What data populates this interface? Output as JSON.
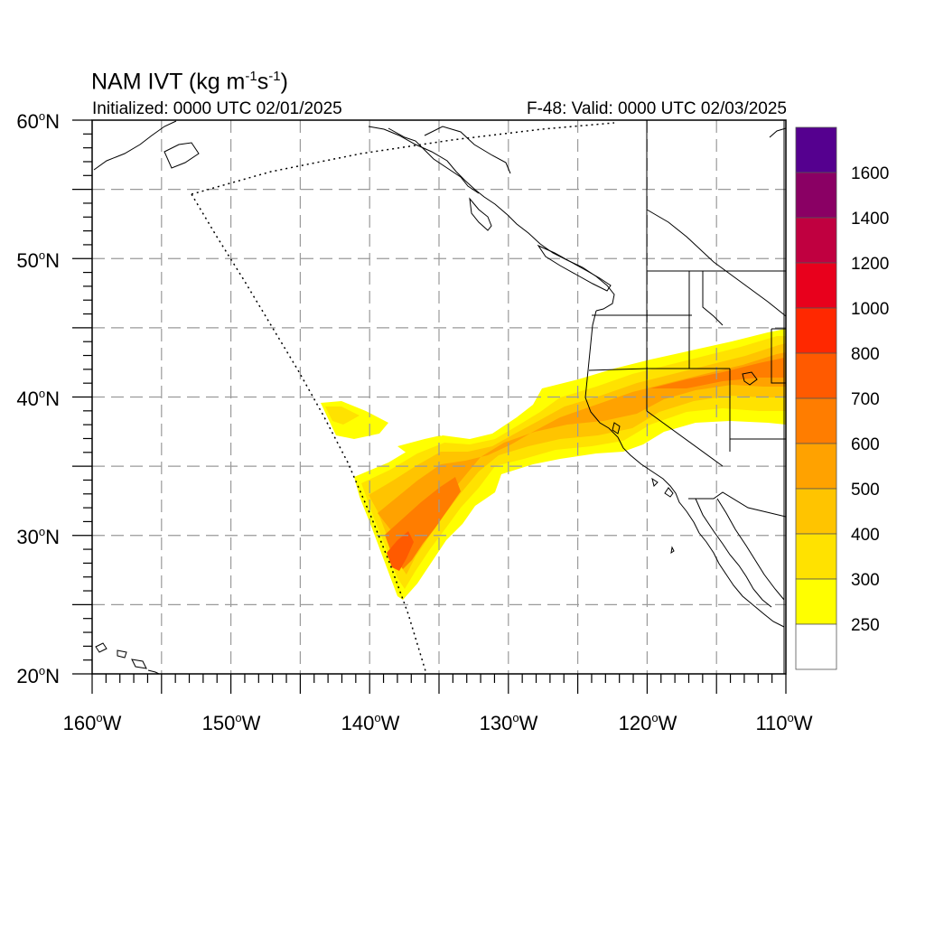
{
  "figure": {
    "title_main": "NAM IVT (kg m",
    "title_sup1": "-1",
    "title_mid": "s",
    "title_sup2": "-1",
    "title_end": ")",
    "initialized": "Initialized: 0000 UTC 02/01/2025",
    "valid": "F-48: Valid: 0000 UTC 02/03/2025"
  },
  "map": {
    "lon_range": [
      -160,
      -110
    ],
    "lat_range": [
      20,
      60
    ],
    "gridline_style": "dashed gray",
    "x_ticks": [
      {
        "num": "160",
        "hemi": "W"
      },
      {
        "num": "150",
        "hemi": "W"
      },
      {
        "num": "140",
        "hemi": "W"
      },
      {
        "num": "130",
        "hemi": "W"
      },
      {
        "num": "120",
        "hemi": "W"
      },
      {
        "num": "110",
        "hemi": "W"
      }
    ],
    "y_ticks": [
      {
        "num": "60",
        "hemi": "N"
      },
      {
        "num": "50",
        "hemi": "N"
      },
      {
        "num": "40",
        "hemi": "N"
      },
      {
        "num": "30",
        "hemi": "N"
      },
      {
        "num": "20",
        "hemi": "N"
      }
    ],
    "degree_symbol": "o",
    "atmospheric_river_max_ivt_range": "700-800"
  },
  "colorbar": {
    "labels": [
      "1600",
      "1400",
      "1200",
      "1000",
      "800",
      "700",
      "600",
      "500",
      "400",
      "300",
      "250"
    ],
    "colors": [
      "#55008f",
      "#8a0064",
      "#c00040",
      "#e8001c",
      "#ff2800",
      "#ff5a00",
      "#ff7d00",
      "#ffa200",
      "#ffc400",
      "#ffe200",
      "#ffff00",
      "#ffffff"
    ]
  }
}
